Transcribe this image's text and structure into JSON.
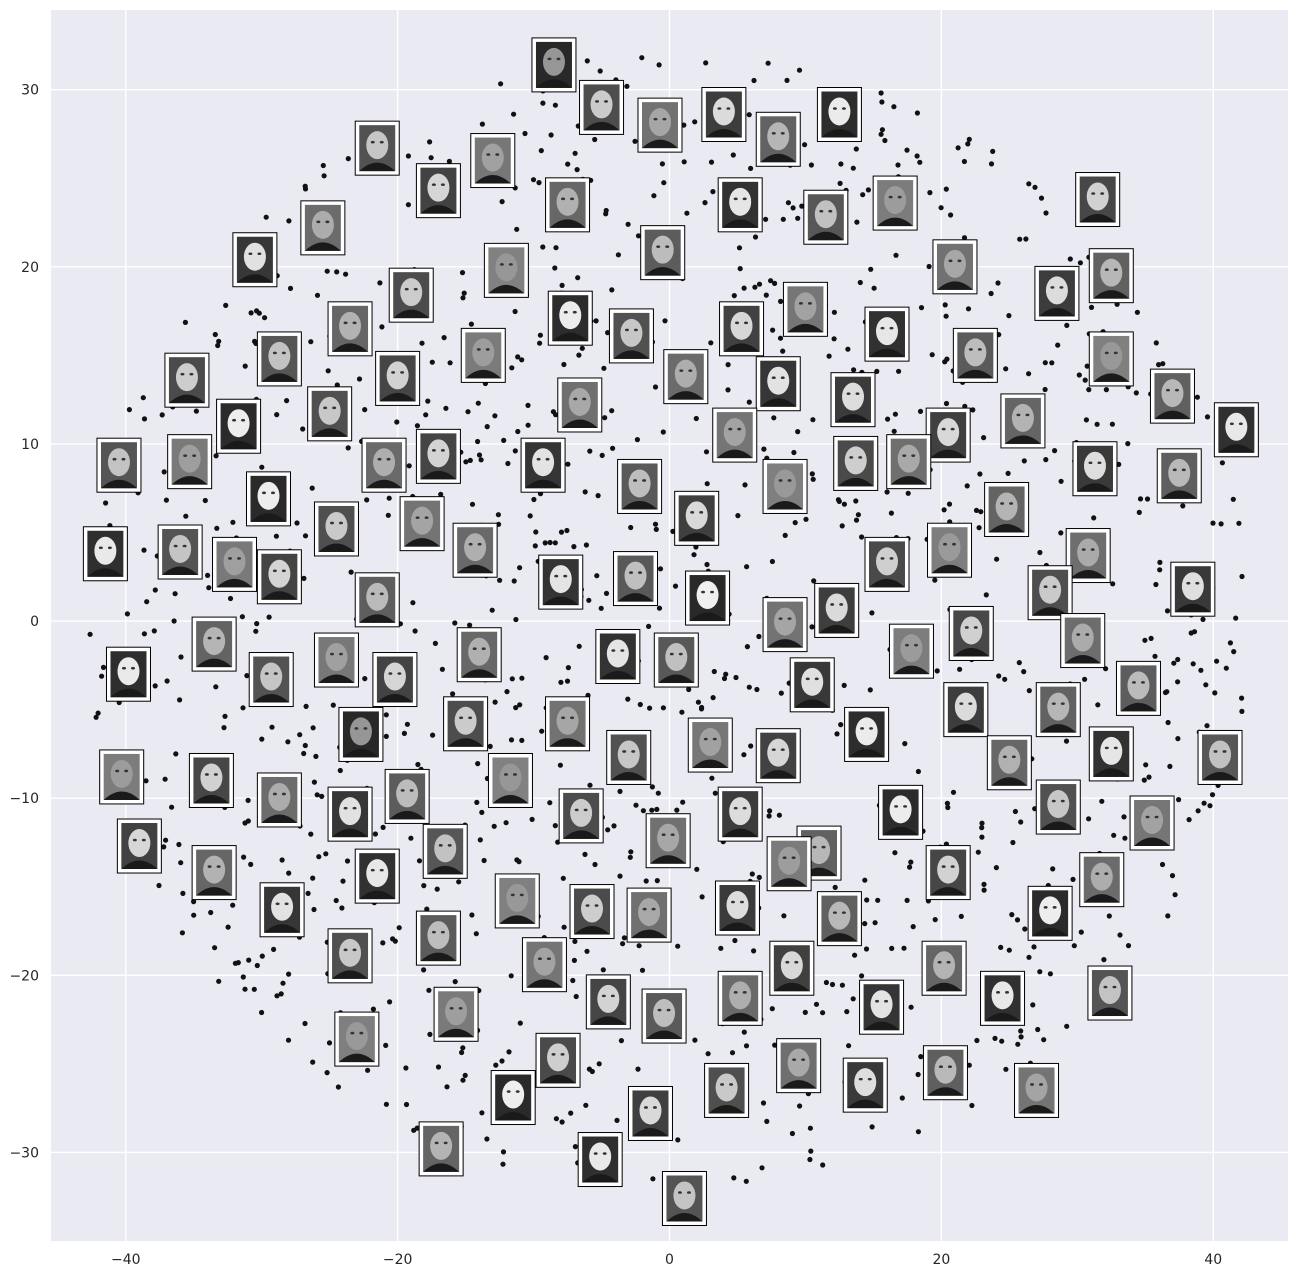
{
  "chart_data": {
    "type": "scatter",
    "title": "",
    "xlabel": "",
    "ylabel": "",
    "xlim": [
      -45.5,
      45.5
    ],
    "ylim": [
      -35,
      34.5
    ],
    "grid": true,
    "background": "#eaeaf2",
    "grid_color": "#ffffff",
    "point_color": "#111111",
    "xticks": [
      -40,
      -20,
      0,
      20,
      40
    ],
    "yticks": [
      -30,
      -20,
      -10,
      0,
      10,
      20,
      30
    ],
    "xtick_labels": [
      "−40",
      "−20",
      "0",
      "20",
      "40"
    ],
    "ytick_labels": [
      "−30",
      "−20",
      "−10",
      "0",
      "10",
      "20",
      "30"
    ],
    "point_count": 1300,
    "thumbnails": [
      [
        -8.5,
        31.4
      ],
      [
        -5,
        29
      ],
      [
        -0.7,
        28
      ],
      [
        4,
        28.6
      ],
      [
        8,
        27.2
      ],
      [
        12.5,
        28.6
      ],
      [
        -21.5,
        26.7
      ],
      [
        -13,
        26
      ],
      [
        -17,
        24.3
      ],
      [
        -7.5,
        23.5
      ],
      [
        5.2,
        23.5
      ],
      [
        11.5,
        22.8
      ],
      [
        16.6,
        23.6
      ],
      [
        31.5,
        23.8
      ],
      [
        -25.5,
        22.2
      ],
      [
        -30.5,
        20.4
      ],
      [
        -0.5,
        20.8
      ],
      [
        -12,
        19.8
      ],
      [
        -19,
        18.4
      ],
      [
        21,
        20
      ],
      [
        28.5,
        18.5
      ],
      [
        32.5,
        19.5
      ],
      [
        -7.3,
        17.1
      ],
      [
        -2.8,
        16.1
      ],
      [
        10,
        17.6
      ],
      [
        5.3,
        16.5
      ],
      [
        -23.5,
        16.5
      ],
      [
        16,
        16.2
      ],
      [
        -28.7,
        14.8
      ],
      [
        -13.7,
        15
      ],
      [
        -20,
        13.7
      ],
      [
        1.2,
        13.8
      ],
      [
        8,
        13.4
      ],
      [
        22.5,
        15
      ],
      [
        32.5,
        14.8
      ],
      [
        -35.5,
        13.6
      ],
      [
        -6.6,
        12.2
      ],
      [
        13.5,
        12.5
      ],
      [
        37,
        12.7
      ],
      [
        -31.7,
        11
      ],
      [
        -25,
        11.7
      ],
      [
        4.8,
        10.5
      ],
      [
        20.5,
        10.5
      ],
      [
        26,
        11.3
      ],
      [
        41.7,
        10.8
      ],
      [
        -40.5,
        8.8
      ],
      [
        -35.3,
        9
      ],
      [
        -17,
        9.3
      ],
      [
        -21,
        8.8
      ],
      [
        -9.3,
        8.8
      ],
      [
        -2.2,
        7.6
      ],
      [
        8.5,
        7.6
      ],
      [
        13.7,
        8.9
      ],
      [
        17.6,
        9
      ],
      [
        31.3,
        8.6
      ],
      [
        37.5,
        8.2
      ],
      [
        -29.5,
        6.9
      ],
      [
        -24.5,
        5.2
      ],
      [
        -18.2,
        5.5
      ],
      [
        2,
        5.8
      ],
      [
        24.8,
        6.3
      ],
      [
        -41.5,
        3.8
      ],
      [
        -36,
        3.9
      ],
      [
        -32,
        3.2
      ],
      [
        -28.7,
        2.5
      ],
      [
        -14.3,
        4
      ],
      [
        -8,
        2.2
      ],
      [
        -2.5,
        2.4
      ],
      [
        20.6,
        4
      ],
      [
        16,
        3.2
      ],
      [
        30.8,
        3.7
      ],
      [
        38.5,
        1.8
      ],
      [
        -21.5,
        1.2
      ],
      [
        2.8,
        1.3
      ],
      [
        28,
        1.6
      ],
      [
        8.5,
        -0.2
      ],
      [
        12.3,
        0.6
      ],
      [
        -33.5,
        -1.3
      ],
      [
        -39.8,
        -3
      ],
      [
        -29.3,
        -3.3
      ],
      [
        -24.5,
        -2.2
      ],
      [
        -20.2,
        -3.3
      ],
      [
        -14,
        -1.9
      ],
      [
        -3.8,
        -2
      ],
      [
        0.5,
        -2.2
      ],
      [
        17.8,
        -1.7
      ],
      [
        22.2,
        -0.7
      ],
      [
        30.4,
        -1.1
      ],
      [
        10.5,
        -3.6
      ],
      [
        34.5,
        -3.8
      ],
      [
        -22.7,
        -6.4
      ],
      [
        -15,
        -5.8
      ],
      [
        -7.5,
        -5.8
      ],
      [
        21.8,
        -5
      ],
      [
        28.6,
        -5
      ],
      [
        14.5,
        -6.4
      ],
      [
        -3,
        -7.7
      ],
      [
        3,
        -7
      ],
      [
        8,
        -7.6
      ],
      [
        25,
        -8
      ],
      [
        32.5,
        -7.5
      ],
      [
        40.5,
        -7.7
      ],
      [
        -40.3,
        -8.8
      ],
      [
        -33.7,
        -9
      ],
      [
        -28.7,
        -10.1
      ],
      [
        -23.5,
        -10.9
      ],
      [
        -19.3,
        -9.9
      ],
      [
        -11.7,
        -9
      ],
      [
        -6.5,
        -11
      ],
      [
        -0.1,
        -12.4
      ],
      [
        5.2,
        -10.9
      ],
      [
        11,
        -13.1
      ],
      [
        17,
        -10.8
      ],
      [
        28.6,
        -10.5
      ],
      [
        35.5,
        -11.4
      ],
      [
        -39,
        -12.7
      ],
      [
        -33.5,
        -14.2
      ],
      [
        -21.5,
        -14.4
      ],
      [
        -16.5,
        -13
      ],
      [
        8.8,
        -13.7
      ],
      [
        20.5,
        -14.2
      ],
      [
        31.8,
        -14.6
      ],
      [
        -28.5,
        -16.3
      ],
      [
        -17,
        -17.9
      ],
      [
        -11.2,
        -15.8
      ],
      [
        -5.7,
        -16.4
      ],
      [
        -1.5,
        -16.6
      ],
      [
        5,
        -16.2
      ],
      [
        12.5,
        -16.8
      ],
      [
        28,
        -16.5
      ],
      [
        -23.5,
        -18.9
      ],
      [
        -9.2,
        -19.4
      ],
      [
        9,
        -19.6
      ],
      [
        20.2,
        -19.6
      ],
      [
        24.5,
        -21.3
      ],
      [
        32.4,
        -21
      ],
      [
        -15.7,
        -22.2
      ],
      [
        -4.5,
        -21.5
      ],
      [
        5.2,
        -21.3
      ],
      [
        15.6,
        -21.8
      ],
      [
        -0.4,
        -22.3
      ],
      [
        -23,
        -23.6
      ],
      [
        -8.2,
        -24.8
      ],
      [
        9.5,
        -25.1
      ],
      [
        14.4,
        -26.2
      ],
      [
        20.3,
        -25.5
      ],
      [
        -11.5,
        -26.9
      ],
      [
        4.2,
        -26.5
      ],
      [
        27,
        -26.5
      ],
      [
        -1.4,
        -27.8
      ],
      [
        -16.8,
        -29.8
      ],
      [
        -5.1,
        -30.4
      ],
      [
        1.1,
        -32.6
      ]
    ]
  }
}
